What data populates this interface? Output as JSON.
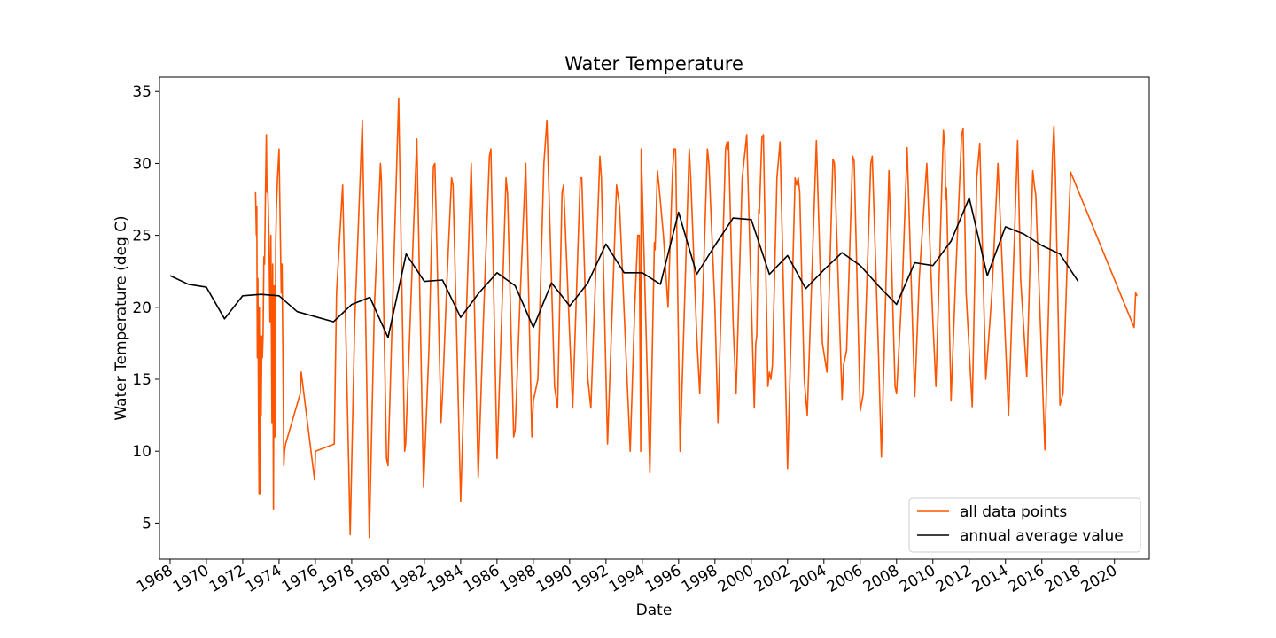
{
  "chart_data": {
    "type": "line",
    "title": "Water Temperature",
    "xlabel": "Date",
    "ylabel": "Water Temperature (deg C)",
    "x_scale": "date",
    "xlim": [
      "1967-06-01",
      "2021-12-01"
    ],
    "ylim": [
      2.5,
      36
    ],
    "x_ticks": [
      "1968",
      "1970",
      "1972",
      "1974",
      "1976",
      "1978",
      "1980",
      "1982",
      "1984",
      "1986",
      "1988",
      "1990",
      "1992",
      "1994",
      "1996",
      "1998",
      "2000",
      "2002",
      "2004",
      "2006",
      "2008",
      "2010",
      "2012",
      "2014",
      "2016",
      "2018",
      "2020"
    ],
    "y_ticks": [
      5,
      10,
      15,
      20,
      25,
      30,
      35
    ],
    "grid": false,
    "legend_position": "bottom-right",
    "series": [
      {
        "name": "all data points",
        "color": "#ff5500",
        "points": [
          [
            "1972-09-15",
            28
          ],
          [
            "1972-10-01",
            25
          ],
          [
            "1972-10-10",
            27
          ],
          [
            "1972-10-20",
            16.5
          ],
          [
            "1972-11-01",
            22
          ],
          [
            "1972-11-15",
            12
          ],
          [
            "1972-11-25",
            7
          ],
          [
            "1972-12-01",
            20
          ],
          [
            "1972-12-10",
            7
          ],
          [
            "1972-12-20",
            18
          ],
          [
            "1973-01-05",
            12.5
          ],
          [
            "1973-01-20",
            18
          ],
          [
            "1973-02-01",
            16.5
          ],
          [
            "1973-02-15",
            18
          ],
          [
            "1973-03-01",
            23.5
          ],
          [
            "1973-03-15",
            23
          ],
          [
            "1973-04-01",
            28
          ],
          [
            "1973-04-20",
            32
          ],
          [
            "1973-05-01",
            28
          ],
          [
            "1973-05-20",
            28
          ],
          [
            "1973-06-10",
            25
          ],
          [
            "1973-07-01",
            19
          ],
          [
            "1973-07-20",
            25
          ],
          [
            "1973-08-10",
            12
          ],
          [
            "1973-08-25",
            23
          ],
          [
            "1973-09-10",
            6
          ],
          [
            "1973-09-25",
            21.5
          ],
          [
            "1973-10-10",
            11
          ],
          [
            "1973-10-25",
            24.5
          ],
          [
            "1973-11-10",
            27
          ],
          [
            "1973-12-01",
            29
          ],
          [
            "1974-01-01",
            31
          ],
          [
            "1974-02-15",
            21
          ],
          [
            "1974-03-01",
            23
          ],
          [
            "1974-03-20",
            16
          ],
          [
            "1974-04-05",
            9
          ],
          [
            "1974-04-20",
            10
          ],
          [
            "1974-05-10",
            10.5
          ],
          [
            "1975-03-01",
            14
          ],
          [
            "1975-03-20",
            15.5
          ],
          [
            "1975-12-15",
            8
          ],
          [
            "1976-01-05",
            10
          ],
          [
            "1977-01-15",
            10.5
          ],
          [
            "1977-03-01",
            21
          ],
          [
            "1977-07-01",
            28.5
          ],
          [
            "1977-12-01",
            4.2
          ],
          [
            "1978-03-01",
            19
          ],
          [
            "1978-08-01",
            33
          ],
          [
            "1978-12-20",
            4
          ],
          [
            "1979-04-01",
            20
          ],
          [
            "1979-08-01",
            30
          ],
          [
            "1979-08-20",
            28.8
          ],
          [
            "1979-12-01",
            9.5
          ],
          [
            "1980-01-01",
            9
          ],
          [
            "1980-04-01",
            20
          ],
          [
            "1980-08-01",
            34.5
          ],
          [
            "1980-12-01",
            10
          ],
          [
            "1980-12-20",
            10.5
          ],
          [
            "1981-04-01",
            20
          ],
          [
            "1981-08-01",
            31.7
          ],
          [
            "1981-12-15",
            7.5
          ],
          [
            "1982-04-01",
            17
          ],
          [
            "1982-07-01",
            29.8
          ],
          [
            "1982-08-01",
            30
          ],
          [
            "1982-12-01",
            12
          ],
          [
            "1983-01-01",
            14
          ],
          [
            "1983-04-01",
            22
          ],
          [
            "1983-07-01",
            29
          ],
          [
            "1983-08-01",
            28.5
          ],
          [
            "1984-01-01",
            6.5
          ],
          [
            "1984-04-01",
            17
          ],
          [
            "1984-08-01",
            30
          ],
          [
            "1984-12-20",
            8.2
          ],
          [
            "1985-04-01",
            19
          ],
          [
            "1985-08-01",
            30.5
          ],
          [
            "1985-09-01",
            31
          ],
          [
            "1986-01-01",
            9.5
          ],
          [
            "1986-04-01",
            19
          ],
          [
            "1986-07-01",
            29
          ],
          [
            "1986-08-01",
            27.9
          ],
          [
            "1986-12-01",
            11
          ],
          [
            "1987-01-01",
            11.5
          ],
          [
            "1987-04-01",
            20
          ],
          [
            "1987-08-01",
            30
          ],
          [
            "1987-12-01",
            11
          ],
          [
            "1988-01-01",
            13.5
          ],
          [
            "1988-04-01",
            15
          ],
          [
            "1988-08-01",
            30
          ],
          [
            "1988-10-01",
            33
          ],
          [
            "1989-03-01",
            14.5
          ],
          [
            "1989-05-01",
            13
          ],
          [
            "1989-08-01",
            28
          ],
          [
            "1989-09-01",
            28.5
          ],
          [
            "1990-01-01",
            18
          ],
          [
            "1990-03-01",
            13
          ],
          [
            "1990-08-01",
            29
          ],
          [
            "1990-09-01",
            29
          ],
          [
            "1991-01-01",
            15
          ],
          [
            "1991-03-01",
            13
          ],
          [
            "1991-09-01",
            30.5
          ],
          [
            "1991-10-01",
            29
          ],
          [
            "1992-02-01",
            10.5
          ],
          [
            "1992-08-01",
            28.5
          ],
          [
            "1992-10-01",
            27
          ],
          [
            "1993-05-01",
            10
          ],
          [
            "1993-08-01",
            20
          ],
          [
            "1993-10-01",
            25
          ],
          [
            "1993-11-01",
            25
          ],
          [
            "1993-12-01",
            10
          ],
          [
            "1993-12-10",
            31
          ],
          [
            "1994-06-01",
            8.5
          ],
          [
            "1994-09-01",
            24.5
          ],
          [
            "1994-09-15",
            24
          ],
          [
            "1994-11-01",
            29.5
          ],
          [
            "1994-12-01",
            28.5
          ],
          [
            "1995-03-01",
            25
          ],
          [
            "1995-06-01",
            20
          ],
          [
            "1995-09-01",
            29.5
          ],
          [
            "1995-10-01",
            31
          ],
          [
            "1995-11-01",
            31
          ],
          [
            "1996-02-01",
            10
          ],
          [
            "1996-08-01",
            31
          ],
          [
            "1996-09-01",
            29
          ],
          [
            "1997-01-01",
            18
          ],
          [
            "1997-03-01",
            14
          ],
          [
            "1997-08-01",
            31
          ],
          [
            "1997-09-01",
            30
          ],
          [
            "1998-01-01",
            20
          ],
          [
            "1998-03-01",
            12
          ],
          [
            "1998-08-01",
            31
          ],
          [
            "1998-09-01",
            31.5
          ],
          [
            "1998-09-15",
            31
          ],
          [
            "1998-10-01",
            31.5
          ],
          [
            "1999-01-01",
            19
          ],
          [
            "1999-03-01",
            14
          ],
          [
            "1999-07-01",
            29
          ],
          [
            "1999-10-01",
            32
          ],
          [
            "2000-03-01",
            13
          ],
          [
            "2000-04-01",
            17.5
          ],
          [
            "2000-04-20",
            18
          ],
          [
            "2000-06-01",
            26.8
          ],
          [
            "2000-06-10",
            26.5
          ],
          [
            "2000-08-01",
            31.8
          ],
          [
            "2000-09-01",
            32
          ],
          [
            "2000-12-01",
            14.5
          ],
          [
            "2001-01-01",
            15.5
          ],
          [
            "2001-02-01",
            15
          ],
          [
            "2001-03-01",
            16
          ],
          [
            "2001-06-01",
            29
          ],
          [
            "2001-08-01",
            31.5
          ],
          [
            "2002-01-01",
            8.8
          ],
          [
            "2002-06-01",
            29
          ],
          [
            "2002-07-01",
            28.5
          ],
          [
            "2002-08-01",
            29
          ],
          [
            "2002-09-01",
            28
          ],
          [
            "2002-12-01",
            15
          ],
          [
            "2003-02-01",
            12.5
          ],
          [
            "2003-08-01",
            31.6
          ],
          [
            "2003-12-01",
            17.5
          ],
          [
            "2004-03-01",
            15.5
          ],
          [
            "2004-07-01",
            30.3
          ],
          [
            "2004-08-01",
            30
          ],
          [
            "2005-01-01",
            13.6
          ],
          [
            "2005-02-01",
            16
          ],
          [
            "2005-04-01",
            17
          ],
          [
            "2005-08-01",
            30.5
          ],
          [
            "2005-09-01",
            30.2
          ],
          [
            "2006-01-01",
            12.8
          ],
          [
            "2006-03-01",
            14
          ],
          [
            "2006-08-01",
            30
          ],
          [
            "2006-09-01",
            30.5
          ],
          [
            "2007-01-01",
            17
          ],
          [
            "2007-03-01",
            9.6
          ],
          [
            "2007-08-01",
            29.5
          ],
          [
            "2007-12-01",
            14.5
          ],
          [
            "2008-01-01",
            14
          ],
          [
            "2008-05-01",
            22
          ],
          [
            "2008-08-01",
            31.1
          ],
          [
            "2009-01-01",
            13.8
          ],
          [
            "2009-04-01",
            22
          ],
          [
            "2009-09-01",
            30
          ],
          [
            "2010-01-01",
            19
          ],
          [
            "2010-03-01",
            14.5
          ],
          [
            "2010-08-01",
            32.3
          ],
          [
            "2010-09-01",
            31
          ],
          [
            "2010-09-15",
            27.5
          ],
          [
            "2010-10-01",
            28.3
          ],
          [
            "2011-01-01",
            13.5
          ],
          [
            "2011-04-01",
            22
          ],
          [
            "2011-08-01",
            32
          ],
          [
            "2011-09-01",
            32.4
          ],
          [
            "2011-11-01",
            21
          ],
          [
            "2012-03-01",
            13.1
          ],
          [
            "2012-06-01",
            29
          ],
          [
            "2012-08-01",
            31.4
          ],
          [
            "2012-12-01",
            15
          ],
          [
            "2013-04-01",
            21
          ],
          [
            "2013-08-01",
            30
          ],
          [
            "2014-03-01",
            12.5
          ],
          [
            "2014-09-01",
            31.6
          ],
          [
            "2014-11-01",
            22
          ],
          [
            "2015-03-01",
            15.2
          ],
          [
            "2015-07-01",
            29.5
          ],
          [
            "2015-08-01",
            28.5
          ],
          [
            "2015-09-01",
            27.8
          ],
          [
            "2016-03-01",
            10.1
          ],
          [
            "2016-08-01",
            30.5
          ],
          [
            "2016-09-01",
            32.6
          ],
          [
            "2016-10-01",
            29
          ],
          [
            "2017-01-01",
            13.2
          ],
          [
            "2017-03-01",
            14
          ],
          [
            "2017-06-01",
            24
          ],
          [
            "2017-08-01",
            29.4
          ],
          [
            "2021-02-01",
            18.6
          ],
          [
            "2021-03-01",
            21
          ],
          [
            "2021-04-01",
            20.8
          ]
        ]
      },
      {
        "name": "annual average value",
        "color": "#000000",
        "points": [
          [
            "1968-01-01",
            22.2
          ],
          [
            "1969-01-01",
            21.6
          ],
          [
            "1970-01-01",
            21.4
          ],
          [
            "1971-01-01",
            19.2
          ],
          [
            "1972-01-01",
            20.8
          ],
          [
            "1973-01-01",
            20.9
          ],
          [
            "1974-01-01",
            20.8
          ],
          [
            "1975-01-01",
            19.7
          ],
          [
            "1977-01-01",
            19.0
          ],
          [
            "1978-01-01",
            20.2
          ],
          [
            "1979-01-01",
            20.7
          ],
          [
            "1980-01-01",
            17.9
          ],
          [
            "1981-01-01",
            23.7
          ],
          [
            "1982-01-01",
            21.8
          ],
          [
            "1983-01-01",
            21.9
          ],
          [
            "1984-01-01",
            19.3
          ],
          [
            "1985-01-01",
            21.0
          ],
          [
            "1986-01-01",
            22.4
          ],
          [
            "1987-01-01",
            21.5
          ],
          [
            "1988-01-01",
            18.6
          ],
          [
            "1989-01-01",
            21.7
          ],
          [
            "1990-01-01",
            20.1
          ],
          [
            "1991-01-01",
            21.7
          ],
          [
            "1992-01-01",
            24.4
          ],
          [
            "1993-01-01",
            22.4
          ],
          [
            "1994-01-01",
            22.4
          ],
          [
            "1995-01-01",
            21.6
          ],
          [
            "1996-01-01",
            26.6
          ],
          [
            "1997-01-01",
            22.3
          ],
          [
            "1998-01-01",
            24.3
          ],
          [
            "1999-01-01",
            26.2
          ],
          [
            "2000-01-01",
            26.1
          ],
          [
            "2001-01-01",
            22.3
          ],
          [
            "2002-01-01",
            23.6
          ],
          [
            "2003-01-01",
            21.3
          ],
          [
            "2004-01-01",
            22.6
          ],
          [
            "2005-01-01",
            23.8
          ],
          [
            "2006-01-01",
            22.9
          ],
          [
            "2007-01-01",
            21.5
          ],
          [
            "2008-01-01",
            20.2
          ],
          [
            "2009-01-01",
            23.1
          ],
          [
            "2010-01-01",
            22.9
          ],
          [
            "2011-01-01",
            24.6
          ],
          [
            "2012-01-01",
            27.6
          ],
          [
            "2013-01-01",
            22.2
          ],
          [
            "2014-01-01",
            25.6
          ],
          [
            "2015-01-01",
            25.1
          ],
          [
            "2016-01-01",
            24.3
          ],
          [
            "2017-01-01",
            23.7
          ],
          [
            "2018-01-01",
            21.8
          ]
        ]
      }
    ]
  }
}
